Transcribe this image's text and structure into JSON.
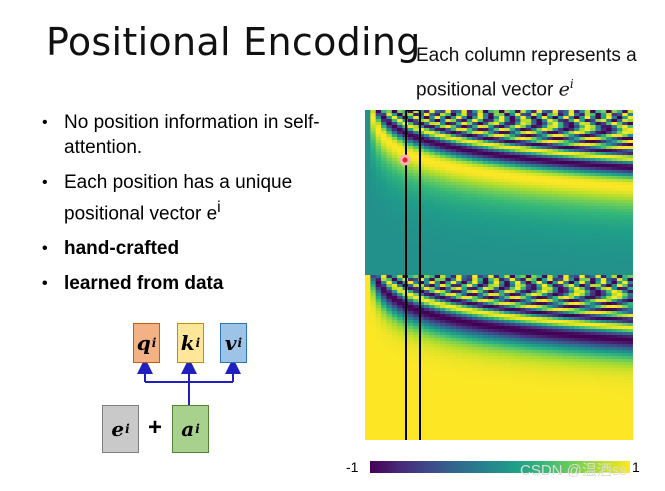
{
  "slide": {
    "title": "Positional Encoding",
    "caption_line1": "Each column represents a",
    "caption_line2": "positional vector ",
    "caption_math": "e",
    "caption_sup": "i"
  },
  "bullets": [
    {
      "text": "No position information in self-attention."
    },
    {
      "text": "Each position has a unique positional vector ",
      "math": "e",
      "sup": "i"
    },
    {
      "text": "hand-crafted"
    },
    {
      "text": "learned from data"
    }
  ],
  "diagram": {
    "q": "q",
    "k": "k",
    "v": "v",
    "e": "e",
    "a": "a",
    "sup": "i",
    "plus": "+",
    "colors": {
      "q_fill": "#f4b183",
      "k_fill": "#ffe699",
      "v_fill": "#9dc3e6",
      "e_fill": "#c9c9c9",
      "a_fill": "#a9d18e",
      "arrow": "#2020c0"
    }
  },
  "heatmap": {
    "colormap": "viridis",
    "highlight_color": "#000000",
    "marker_color": "#e8202a"
  },
  "colorbar": {
    "min_label": "-1",
    "max_label": "1"
  },
  "watermark": "CSDN @温酒ss"
}
